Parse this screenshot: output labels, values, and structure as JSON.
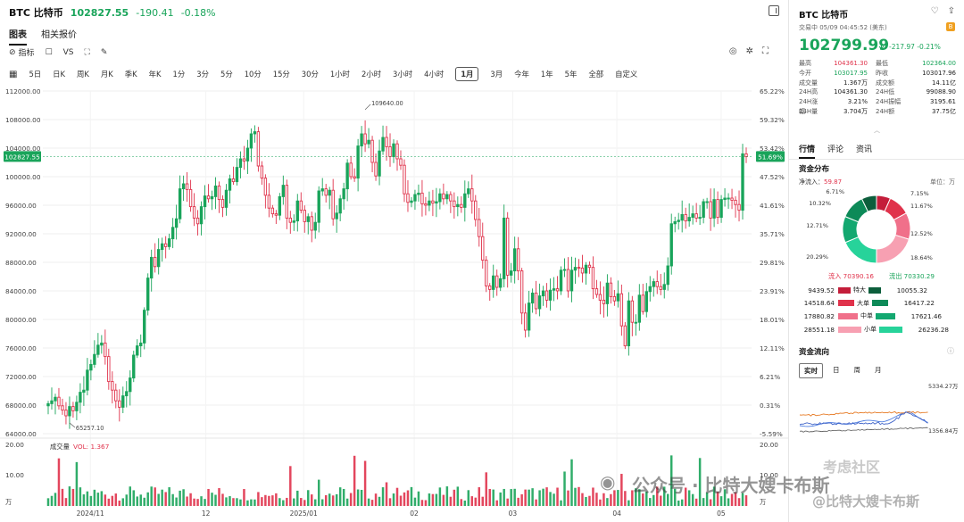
{
  "header": {
    "symbol": "BTC 比特币",
    "price": "102827.55",
    "change": "-190.41",
    "change_pct": "-0.18%"
  },
  "tabs": [
    "图表",
    "相关报价"
  ],
  "tools": {
    "indicator": "指标",
    "vs": "VS"
  },
  "periods": [
    "5日",
    "日K",
    "周K",
    "月K",
    "季K",
    "年K",
    "1分",
    "3分",
    "5分",
    "10分",
    "15分",
    "30分",
    "1小时",
    "2小时",
    "3小时",
    "4小时",
    "1月",
    "3月",
    "今年",
    "1年",
    "5年",
    "全部",
    "自定义"
  ],
  "active_period": "1月",
  "chart_data": {
    "type": "candlestick",
    "y_ticks": [
      "112000.00",
      "108000.00",
      "104000.00",
      "100000.00",
      "96000.00",
      "92000.00",
      "88000.00",
      "84000.00",
      "80000.00",
      "76000.00",
      "72000.00",
      "68000.00",
      "64000.00"
    ],
    "pct_ticks": [
      "65.22%",
      "59.32%",
      "53.42%",
      "47.52%",
      "41.61%",
      "35.71%",
      "29.81%",
      "23.91%",
      "18.01%",
      "12.11%",
      "6.21%",
      "0.31%",
      "-5.59%"
    ],
    "ylim": [
      64000,
      112000
    ],
    "last_price_label": "102827.55",
    "last_pct_label": "51.69%",
    "high_marker": "109640.00",
    "low_marker": "65257.10",
    "x_labels": [
      "2024/11",
      "12",
      "2025/01",
      "02",
      "03",
      "04",
      "05"
    ],
    "closes": [
      68200,
      68600,
      69100,
      67900,
      67300,
      66500,
      67800,
      67200,
      68400,
      69800,
      70100,
      72900,
      73700,
      75100,
      76400,
      76700,
      74800,
      71300,
      70100,
      68600,
      67700,
      69300,
      69900,
      71800,
      75000,
      76300,
      76700,
      81300,
      85800,
      88700,
      87400,
      89800,
      90600,
      90200,
      91300,
      92900,
      94100,
      98300,
      99000,
      98200,
      95800,
      94200,
      93400,
      95800,
      97300,
      96900,
      97200,
      98700,
      96800,
      95700,
      98100,
      99700,
      99300,
      101300,
      102500,
      102200,
      104000,
      106000,
      106300,
      101500,
      99800,
      97400,
      95600,
      94800,
      94600,
      97200,
      98800,
      94200,
      93600,
      93800,
      96600,
      95300,
      93700,
      94400,
      92500,
      93600,
      98000,
      98300,
      97400,
      98100,
      94100,
      94900,
      96900,
      98300,
      101900,
      100000,
      99800,
      104300,
      106000,
      104600,
      105100,
      102000,
      100100,
      103600,
      105500,
      104200,
      102800,
      104600,
      102500,
      101600,
      97600,
      96400,
      96600,
      97500,
      97700,
      96200,
      96000,
      96600,
      96300,
      96500,
      97600,
      96900,
      97500,
      96600,
      95800,
      96100,
      95700,
      97600,
      98300,
      96600,
      94000,
      91600,
      88300,
      84700,
      84200,
      86100,
      84500,
      85700,
      94200,
      86200,
      86800,
      89900,
      86800,
      80900,
      78500,
      82300,
      83700,
      81500,
      83300,
      84000,
      82700,
      84100,
      84300,
      84000,
      86900,
      87000,
      84000,
      86900,
      87300,
      87200,
      86500,
      87600,
      87300,
      84300,
      83500,
      82700,
      82200,
      85100,
      83200,
      82600,
      83600,
      79100,
      76300,
      82600,
      79600,
      79600,
      83400,
      81100,
      83900,
      84600,
      85300,
      84600,
      84200,
      84900,
      87500,
      93400,
      93700,
      93900,
      94700,
      93800,
      94300,
      94800,
      94200,
      94300,
      96500,
      96500,
      94200,
      96800,
      94300,
      96800,
      97000,
      97000,
      96700,
      96100,
      95300,
      103200,
      102800
    ],
    "volume_ticks": [
      "20.00",
      "10.00"
    ],
    "volume_unit": "万",
    "volume_label": "成交量",
    "volume_value": "VOL: 1.367"
  },
  "right": {
    "title": "BTC 比特币",
    "status": "交易中 05/09 04:45:52 (美东)",
    "price": "102799.99",
    "change": "-217.97",
    "change_pct": "-0.21%",
    "stats": [
      {
        "k": "最高",
        "v": "104361.30",
        "vc": "red",
        "k2": "最低",
        "v2": "102364.00",
        "v2c": "green"
      },
      {
        "k": "今开",
        "v": "103017.95",
        "vc": "green",
        "k2": "昨收",
        "v2": "103017.96",
        "v2c": ""
      },
      {
        "k": "成交量",
        "v": "1.367万",
        "vc": "",
        "k2": "成交额",
        "v2": "14.11亿",
        "v2c": ""
      },
      {
        "k": "24H高",
        "v": "104361.30",
        "vc": "",
        "k2": "24H低",
        "v2": "99088.90",
        "v2c": ""
      },
      {
        "k": "24H涨幅",
        "v": "3.21%",
        "vc": "",
        "k2": "24H振幅",
        "v2": "3195.61",
        "v2c": ""
      },
      {
        "k": "24H量",
        "v": "3.704万",
        "vc": "",
        "k2": "24H额",
        "v2": "37.75亿",
        "v2c": ""
      }
    ],
    "tabs": [
      "行情",
      "评论",
      "资讯"
    ],
    "capital_title": "资金分布",
    "net_inflow_label": "净流入：",
    "net_inflow_value": "59.87",
    "unit_label": "单位：万",
    "donut": {
      "segments": [
        {
          "label": "6.71%",
          "value": 6.71,
          "color": "#c41d3a"
        },
        {
          "label": "10.32%",
          "value": 10.32,
          "color": "#e0324b"
        },
        {
          "label": "12.71%",
          "value": 12.71,
          "color": "#f0708a"
        },
        {
          "label": "20.29%",
          "value": 20.29,
          "color": "#f7a0b2"
        },
        {
          "label": "18.64%",
          "value": 18.64,
          "color": "#27d39a"
        },
        {
          "label": "12.52%",
          "value": 12.52,
          "color": "#13a870"
        },
        {
          "label": "11.67%",
          "value": 11.67,
          "color": "#0d8a58"
        },
        {
          "label": "7.15%",
          "value": 7.15,
          "color": "#0c5e3c"
        }
      ]
    },
    "inflow_label": "流入 70390.16",
    "outflow_label": "流出 70330.29",
    "legend": [
      {
        "in": "9439.52",
        "name": "特大",
        "out": "10055.32",
        "cin": "#c41d3a",
        "cout": "#0c5e3c"
      },
      {
        "in": "14518.64",
        "name": "大单",
        "out": "16417.22",
        "cin": "#e0324b",
        "cout": "#0d8a58"
      },
      {
        "in": "17880.82",
        "name": "中单",
        "out": "17621.46",
        "cin": "#f0708a",
        "cout": "#13a870"
      },
      {
        "in": "28551.18",
        "name": "小单",
        "out": "26236.28",
        "cin": "#f7a0b2",
        "cout": "#27d39a"
      }
    ],
    "flow_title": "资金流向",
    "flow_tabs": [
      "实时",
      "日",
      "周",
      "月"
    ],
    "flow_top": "5334.27万",
    "flow_bottom": "1356.84万"
  },
  "watermark": {
    "text1": "公众号 · 比特大嫂卡布斯",
    "text2": "考虑社区",
    "text3": "@比特大嫂卡布斯"
  },
  "colors": {
    "up": "#19a45a",
    "down": "#e0324b",
    "accent": "#19a45a"
  }
}
